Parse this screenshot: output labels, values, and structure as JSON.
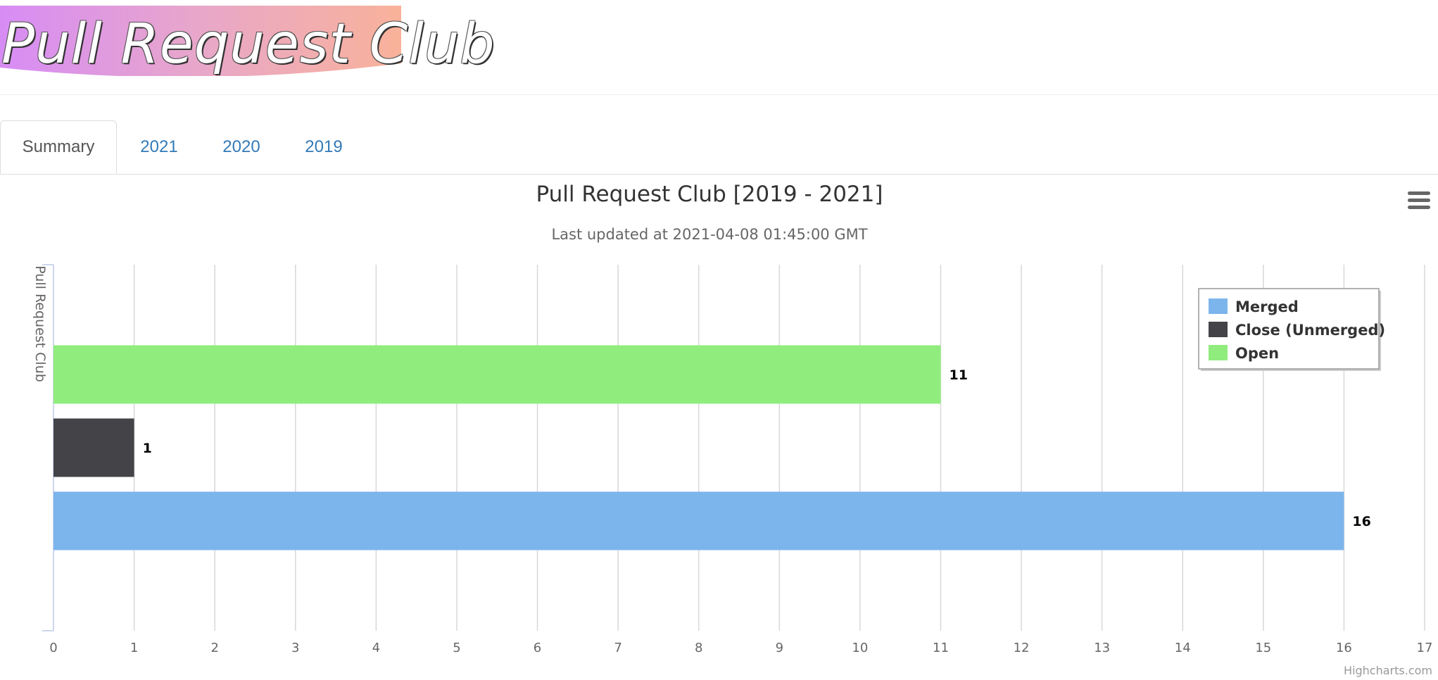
{
  "logo": {
    "text": "Pull Request Club"
  },
  "tabs": [
    {
      "label": "Summary",
      "active": true
    },
    {
      "label": "2021",
      "active": false
    },
    {
      "label": "2020",
      "active": false
    },
    {
      "label": "2019",
      "active": false
    }
  ],
  "menu": {
    "icon": "hamburger-menu-icon"
  },
  "credits": "Highcharts.com",
  "chart_data": {
    "type": "bar",
    "orientation": "horizontal",
    "title": "Pull Request Club [2019 - 2021]",
    "subtitle": "Last updated at 2021-04-08 01:45:00 GMT",
    "categories": [
      "Pull Request Club"
    ],
    "xlabel": "",
    "ylabel": "",
    "xlim": [
      0,
      17
    ],
    "x_ticks": [
      "0",
      "1",
      "2",
      "3",
      "4",
      "5",
      "6",
      "7",
      "8",
      "9",
      "10",
      "11",
      "12",
      "13",
      "14",
      "15",
      "16",
      "17"
    ],
    "grid": true,
    "legend_position": "top-right",
    "series": [
      {
        "name": "Merged",
        "values": [
          16
        ],
        "color": "#7cb5ec"
      },
      {
        "name": "Close (Unmerged)",
        "values": [
          1
        ],
        "color": "#434348"
      },
      {
        "name": "Open",
        "values": [
          11
        ],
        "color": "#90ed7d"
      }
    ]
  }
}
